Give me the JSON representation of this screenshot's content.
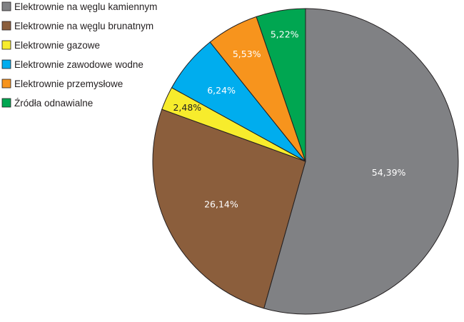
{
  "chart_data": {
    "type": "pie",
    "title": "",
    "legend_position": "top-left",
    "slices": [
      {
        "label": "Elektrownie na węglu kamiennym",
        "value": 54.39,
        "value_label": "54,39%",
        "color": "#808184"
      },
      {
        "label": "Elektrownie na węglu brunatnym",
        "value": 26.14,
        "value_label": "26,14%",
        "color": "#8b5e3c"
      },
      {
        "label": "Elektrownie gazowe",
        "value": 2.48,
        "value_label": "2,48%",
        "color": "#f7ec2c"
      },
      {
        "label": "Elektrownie zawodowe wodne",
        "value": 6.24,
        "value_label": "6,24%",
        "color": "#00adee"
      },
      {
        "label": "Elektrownie przemysłowe",
        "value": 5.53,
        "value_label": "5,53%",
        "color": "#f7941d"
      },
      {
        "label": "Źródła odnawialne",
        "value": 5.22,
        "value_label": "5,22%",
        "color": "#00a651"
      }
    ]
  }
}
